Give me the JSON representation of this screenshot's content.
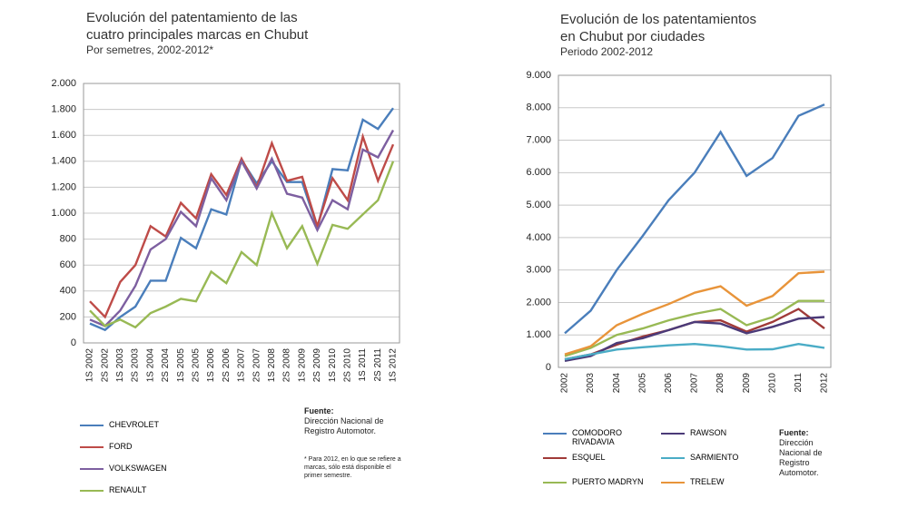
{
  "chart_data": [
    {
      "type": "line",
      "title": [
        "Evolución del patentamiento de las",
        "cuatro principales marcas en Chubut"
      ],
      "subtitle": "Por semetres, 2002-2012*",
      "categories": [
        "1S 2002",
        "2S 2002",
        "1S 2003",
        "2S 2003",
        "1S 2004",
        "2S 2004",
        "1S 2005",
        "2S 2005",
        "1S 2006",
        "2S 2006",
        "1S 2007",
        "2S 2007",
        "1S 2008",
        "2S 2008",
        "1S 2009",
        "2S 2009",
        "1S 2010",
        "2S 2010",
        "1S 2011",
        "2S 2011",
        "1S 2012"
      ],
      "series": [
        {
          "name": "CHEVROLET",
          "color": "#4a7ebb",
          "values": [
            150,
            100,
            200,
            280,
            480,
            480,
            810,
            730,
            1030,
            990,
            1410,
            1230,
            1400,
            1240,
            1240,
            890,
            1340,
            1330,
            1720,
            1650,
            1810
          ]
        },
        {
          "name": "FORD",
          "color": "#be4b48",
          "values": [
            320,
            200,
            470,
            600,
            900,
            820,
            1080,
            960,
            1300,
            1140,
            1420,
            1200,
            1540,
            1250,
            1280,
            900,
            1270,
            1100,
            1590,
            1250,
            1530
          ]
        },
        {
          "name": "VOLKSWAGEN",
          "color": "#7d5fa0",
          "values": [
            180,
            130,
            250,
            440,
            720,
            800,
            1010,
            900,
            1270,
            1100,
            1400,
            1190,
            1420,
            1150,
            1120,
            870,
            1100,
            1030,
            1490,
            1430,
            1640
          ]
        },
        {
          "name": "RENAULT",
          "color": "#98b954",
          "values": [
            250,
            130,
            180,
            120,
            230,
            280,
            340,
            320,
            550,
            460,
            700,
            600,
            1000,
            730,
            900,
            610,
            910,
            880,
            990,
            1100,
            1400
          ]
        }
      ],
      "ylim": [
        0,
        2000
      ],
      "yticks": [
        0,
        200,
        400,
        600,
        800,
        {
          "value": 1000,
          "label": "1.000"
        },
        {
          "value": 1200,
          "label": "1.200"
        },
        {
          "value": 1400,
          "label": "1.400"
        },
        {
          "value": 1600,
          "label": "1.600"
        },
        {
          "value": 1800,
          "label": "1.800"
        },
        {
          "value": 2000,
          "label": "2.000"
        }
      ],
      "grid": true,
      "source_label": "Fuente:",
      "source": "Dirección Nacional de Registro Automotor.",
      "note": "* Para 2012, en lo que se refiere a marcas, sólo está disponible el primer semestre."
    },
    {
      "type": "line",
      "title": [
        "Evolución de los patentamientos",
        "en Chubut por ciudades"
      ],
      "subtitle": "Periodo 2002-2012",
      "categories": [
        "2002",
        "2003",
        "2004",
        "2005",
        "2006",
        "2007",
        "2008",
        "2009",
        "2010",
        "2011",
        "2012"
      ],
      "series": [
        {
          "name": "COMODORO RIVADAVIA",
          "color": "#4a7ebb",
          "values": [
            1050,
            1750,
            3000,
            4050,
            5150,
            6000,
            7250,
            5900,
            6450,
            7750,
            8100
          ]
        },
        {
          "name": "ESQUEL",
          "color": "#a03a38",
          "values": [
            250,
            400,
            700,
            950,
            1150,
            1400,
            1450,
            1100,
            1400,
            1800,
            1200
          ]
        },
        {
          "name": "PUERTO MADRYN",
          "color": "#98b954",
          "values": [
            350,
            600,
            1000,
            1200,
            1450,
            1650,
            1800,
            1300,
            1550,
            2050,
            2050
          ]
        },
        {
          "name": "RAWSON",
          "color": "#4b3a78",
          "values": [
            200,
            350,
            750,
            900,
            1150,
            1400,
            1350,
            1050,
            1250,
            1500,
            1550
          ]
        },
        {
          "name": "SARMIENTO",
          "color": "#4aacc6",
          "values": [
            250,
            400,
            550,
            620,
            680,
            720,
            650,
            550,
            560,
            720,
            600
          ]
        },
        {
          "name": "TRELEW",
          "color": "#e8943a",
          "values": [
            400,
            650,
            1300,
            1650,
            1950,
            2300,
            2500,
            1900,
            2200,
            2900,
            2950
          ]
        }
      ],
      "ylim": [
        0,
        9000
      ],
      "yticks": [
        0,
        {
          "value": 1000,
          "label": "1.000"
        },
        {
          "value": 2000,
          "label": "2.000"
        },
        {
          "value": 3000,
          "label": "3.000"
        },
        {
          "value": 4000,
          "label": "4.000"
        },
        {
          "value": 5000,
          "label": "5.000"
        },
        {
          "value": 6000,
          "label": "6.000"
        },
        {
          "value": 7000,
          "label": "7.000"
        },
        {
          "value": 8000,
          "label": "8.000"
        },
        {
          "value": 9000,
          "label": "9.000"
        }
      ],
      "grid": true,
      "source_label": "Fuente:",
      "source": "Dirección Nacional de Registro Automotor."
    }
  ]
}
